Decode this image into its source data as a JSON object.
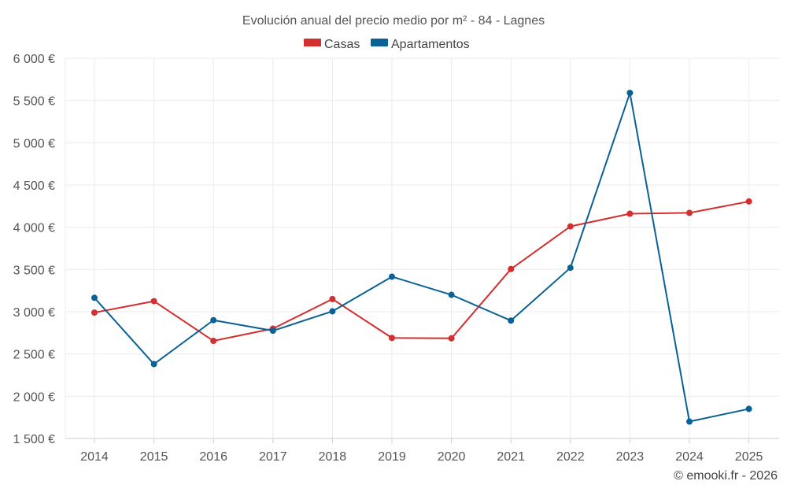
{
  "chart_data": {
    "type": "line",
    "title": "Evolución anual del precio medio por m² - 84 - Lagnes",
    "categories": [
      "2014",
      "2015",
      "2016",
      "2017",
      "2018",
      "2019",
      "2020",
      "2021",
      "2022",
      "2023",
      "2024",
      "2025"
    ],
    "series": [
      {
        "name": "Casas",
        "color": "#d32f2f",
        "values": [
          2990,
          3125,
          2655,
          2800,
          3150,
          2690,
          2685,
          3505,
          4010,
          4160,
          4170,
          4305
        ]
      },
      {
        "name": "Apartamentos",
        "color": "#0a6196",
        "values": [
          3165,
          2380,
          2900,
          2775,
          3005,
          3415,
          3200,
          2895,
          3520,
          5590,
          1700,
          1850
        ]
      }
    ],
    "ylim": [
      1500,
      6000
    ],
    "yticks": [
      1500,
      2000,
      2500,
      3000,
      3500,
      4000,
      4500,
      5000,
      5500,
      6000
    ],
    "ytick_labels": [
      "1 500 €",
      "2 000 €",
      "2 500 €",
      "3 000 €",
      "3 500 €",
      "4 000 €",
      "4 500 €",
      "5 000 €",
      "5 500 €",
      "6 000 €"
    ],
    "xlabel": "",
    "ylabel": "",
    "grid": true,
    "legend_position": "top-center"
  },
  "credit": "© emooki.fr - 2026"
}
